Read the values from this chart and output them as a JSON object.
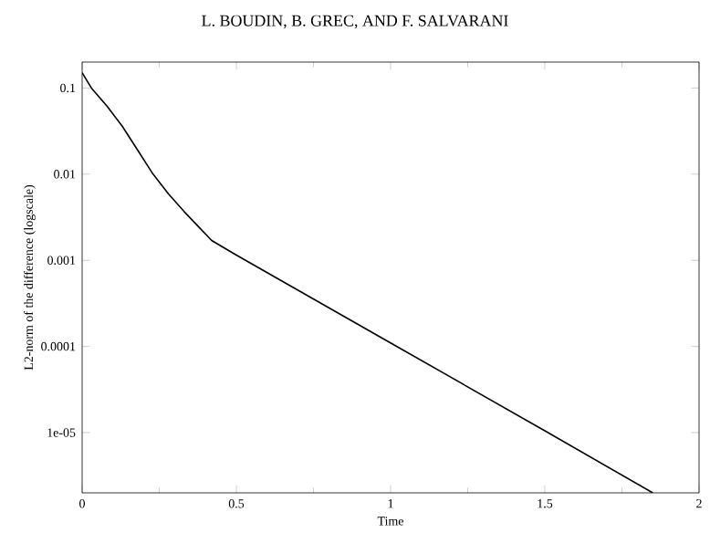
{
  "chart_data": {
    "type": "line",
    "annotations": [
      "L. BOUDIN, B. GREC, AND F. SALVARANI"
    ],
    "xlabel": "Time",
    "ylabel": "L2-norm of the difference (logscale)",
    "log": "y",
    "series": [
      {
        "color": "#000000",
        "x": [
          0,
          0.03,
          0.08,
          0.13,
          0.18,
          0.23,
          0.28,
          0.33,
          0.38,
          0.42,
          0.5,
          1,
          1.5,
          1.85
        ],
        "values": [
          0.15,
          0.1,
          0.062,
          0.036,
          0.019,
          0.01,
          0.0059,
          0.0037,
          0.0024,
          0.0017,
          0.00115,
          0.00011,
          1.05e-05,
          2e-06
        ]
      }
    ],
    "xlim": [
      0,
      2
    ],
    "ylim": [
      2e-06,
      0.2
    ],
    "xticks": [
      0,
      0.5,
      1,
      1.5,
      2
    ],
    "yticks": [
      0.1,
      0.01,
      0.001,
      0.0001,
      {
        "value": 1e-05,
        "label": "1e-05"
      }
    ],
    "grid": false,
    "marker": "none",
    "line_style": "solid"
  }
}
